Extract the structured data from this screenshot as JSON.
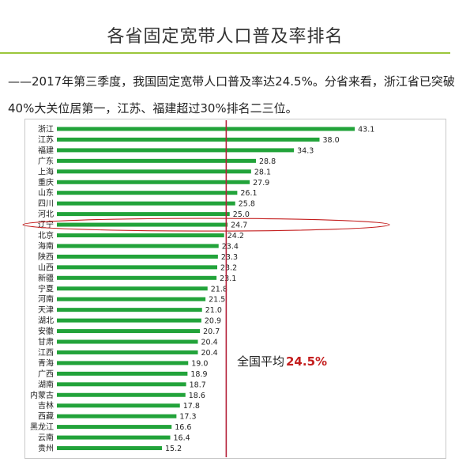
{
  "page": {
    "title": "各省固定宽带人口普及率排名",
    "subtitle_line1": "——2017年第三季度，我国固定宽带人口普及率达24.5%。分省来看，浙江省已突破",
    "subtitle_line2": "40%大关位居第一，江苏、福建超过30%排名二三位。"
  },
  "chart_data": {
    "type": "bar",
    "orientation": "horizontal",
    "categories": [
      "浙江",
      "江苏",
      "福建",
      "广东",
      "上海",
      "重庆",
      "山东",
      "四川",
      "河北",
      "辽宁",
      "北京",
      "海南",
      "陕西",
      "山西",
      "新疆",
      "宁夏",
      "河南",
      "天津",
      "湖北",
      "安徽",
      "甘肃",
      "江西",
      "青海",
      "广西",
      "湖南",
      "内蒙古",
      "吉林",
      "西藏",
      "黑龙江",
      "云南",
      "贵州"
    ],
    "values": [
      43.1,
      38.0,
      34.3,
      28.8,
      28.1,
      27.9,
      26.1,
      25.8,
      25.0,
      24.7,
      24.2,
      23.4,
      23.3,
      23.2,
      23.1,
      21.8,
      21.5,
      21.0,
      20.9,
      20.7,
      20.4,
      20.4,
      19.0,
      18.9,
      18.7,
      18.6,
      17.8,
      17.3,
      16.6,
      16.4,
      15.2
    ],
    "value_labels": [
      "43.1",
      "38.0",
      "34.3",
      "28.8",
      "28.1",
      "27.9",
      "26.1",
      "25.8",
      "25.0",
      "24.7",
      "24.2",
      "23.4",
      "23.3",
      "23.2",
      "23.1",
      "21.8",
      "21.5",
      "21.0",
      "20.9",
      "20.7",
      "20.4",
      "20.4",
      "19.0",
      "18.9",
      "18.7",
      "18.6",
      "17.8",
      "17.3",
      "16.6",
      "16.4",
      "15.2"
    ],
    "xlim": [
      0,
      50
    ],
    "highlighted_category": "辽宁",
    "reference_line": {
      "value": 24.5,
      "label": "全国平均",
      "value_text": "24.5%"
    },
    "colors": {
      "bar": "#22a33a",
      "reference_line": "#b5213a",
      "highlight": "#c41e1e",
      "value_text": "#c41e1e"
    },
    "grid": false
  }
}
